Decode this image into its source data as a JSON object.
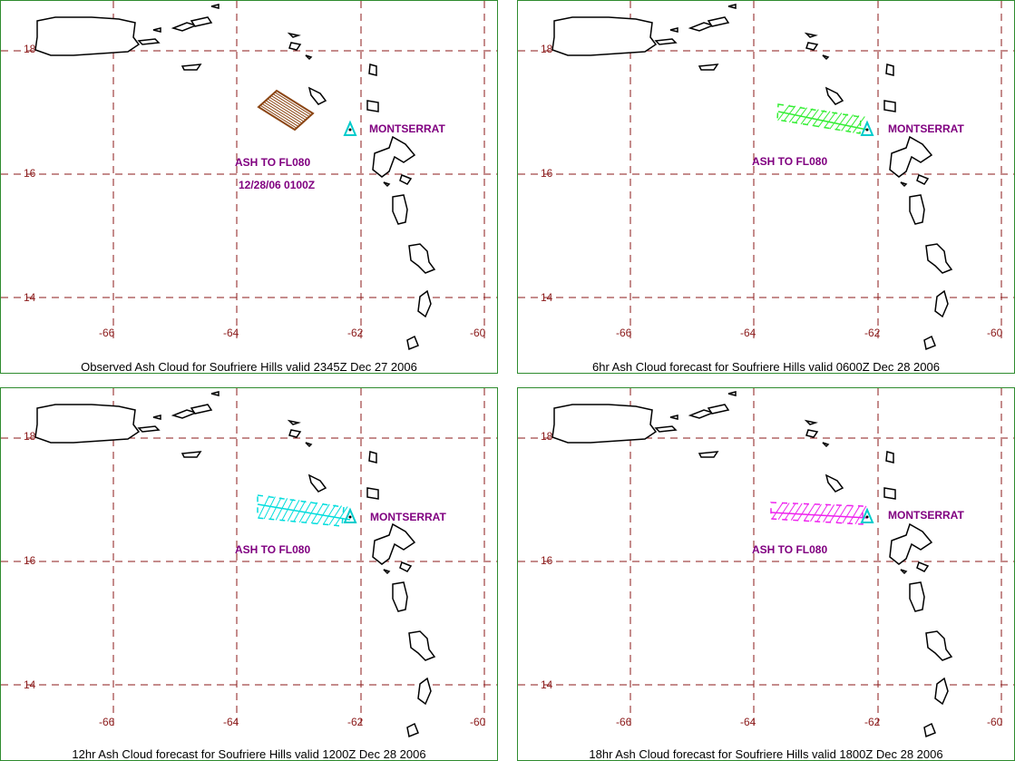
{
  "panels": [
    {
      "caption": "Observed Ash Cloud for Soufriere  Hills valid 2345Z Dec 27 2006",
      "volcano_label": "MONTSERRAT",
      "ash_label": "ASH TO FL080",
      "time_label": "12/28/06  0100Z",
      "cloud_color": "#8b4513",
      "cloud_type": "observed"
    },
    {
      "caption": "6hr Ash Cloud forecast for Soufriere  Hills valid 0600Z Dec 28 2006",
      "volcano_label": "MONTSERRAT",
      "ash_label": "ASH TO FL080",
      "cloud_color": "#33ee33",
      "cloud_type": "forecast"
    },
    {
      "caption": "12hr Ash Cloud forecast for Soufriere  Hills valid 1200Z Dec 28 2006",
      "volcano_label": "MONTSERRAT",
      "ash_label": "ASH TO FL080",
      "cloud_color": "#00dddd",
      "cloud_type": "forecast"
    },
    {
      "caption": "18hr Ash Cloud forecast for Soufriere  Hills valid 1800Z Dec 28 2006",
      "volcano_label": "MONTSERRAT",
      "ash_label": "ASH TO FL080",
      "cloud_color": "#ee22ee",
      "cloud_type": "forecast"
    }
  ],
  "axes": {
    "lat_ticks": [
      "18",
      "16",
      "14"
    ],
    "lon_ticks": [
      "-66",
      "-64",
      "-62",
      "-60"
    ]
  },
  "colors": {
    "grid": "#8b1a1a",
    "coast": "#000000",
    "border": "#2e8b2e",
    "volcano_marker": "#00cccc",
    "annotation": "#800080"
  }
}
